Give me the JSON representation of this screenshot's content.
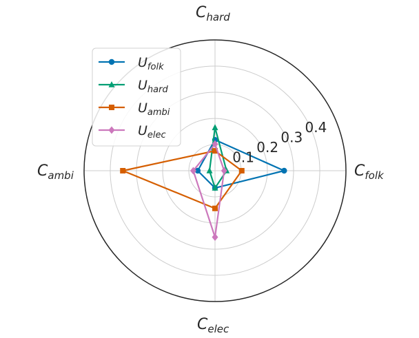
{
  "chart_data": {
    "type": "radar",
    "axes": [
      {
        "base": "C",
        "sub": "folk"
      },
      {
        "base": "C",
        "sub": "hard"
      },
      {
        "base": "C",
        "sub": "ambi"
      },
      {
        "base": "C",
        "sub": "elec"
      }
    ],
    "radial_ticks": [
      0.1,
      0.2,
      0.3,
      0.4
    ],
    "rlim": [
      0,
      0.5
    ],
    "grid": true,
    "legend_position": "upper-left",
    "series": [
      {
        "base": "U",
        "sub": "folk",
        "color": "#0173b2",
        "marker": "circle",
        "values": [
          0.264,
          0.118,
          0.066,
          0.066
        ]
      },
      {
        "base": "U",
        "sub": "hard",
        "color": "#029e73",
        "marker": "triangle",
        "values": [
          0.044,
          0.165,
          0.021,
          0.066
        ]
      },
      {
        "base": "U",
        "sub": "ambi",
        "color": "#d55e00",
        "marker": "square",
        "values": [
          0.102,
          0.076,
          0.352,
          0.144
        ]
      },
      {
        "base": "U",
        "sub": "elec",
        "color": "#cc78bc",
        "marker": "diamond",
        "values": [
          0.035,
          0.102,
          0.083,
          0.254
        ]
      }
    ]
  }
}
